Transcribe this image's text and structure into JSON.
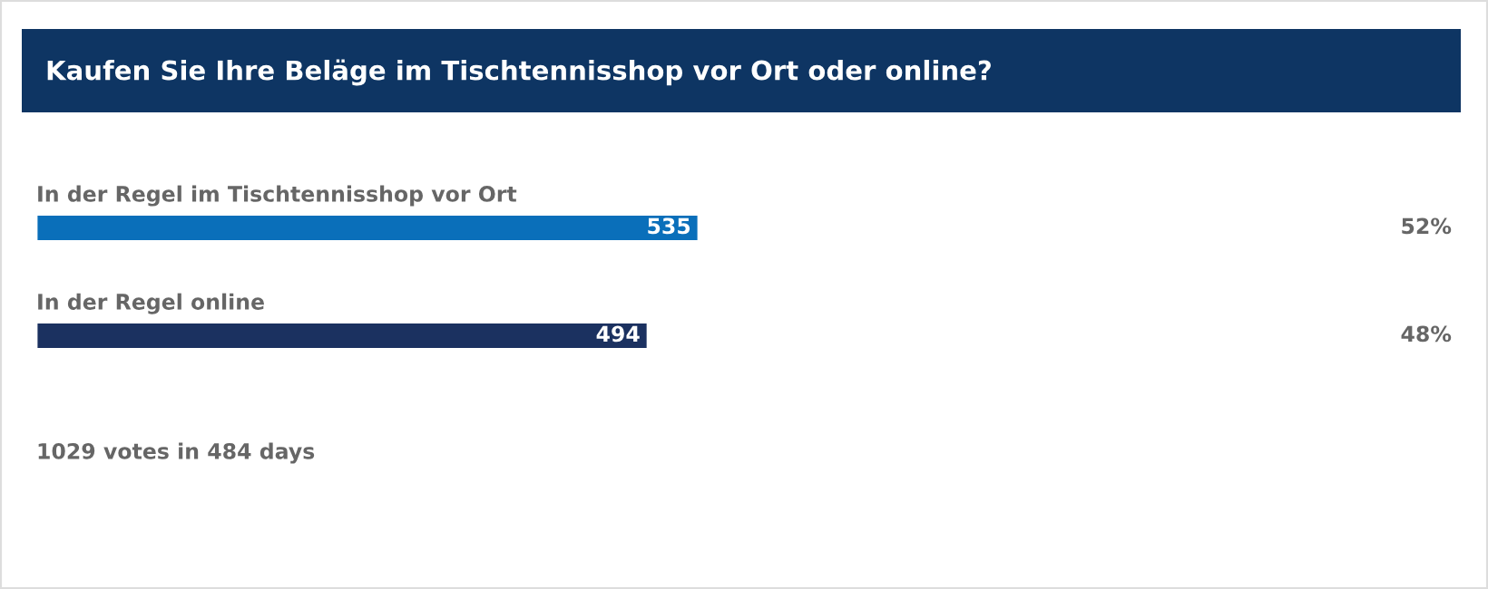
{
  "chart_data": {
    "type": "bar",
    "orientation": "horizontal",
    "title": "Kaufen Sie Ihre Beläge im Tischtennisshop vor Ort oder online?",
    "categories": [
      "In der Regel im Tischtennisshop vor Ort",
      "In der Regel online"
    ],
    "values": [
      535,
      494
    ],
    "colors": [
      "#0a6fba",
      "#1b3160"
    ],
    "data_labels": true,
    "legend": false,
    "annotations": [
      "52%",
      "48%",
      "1029 votes in 484 days"
    ]
  }
}
